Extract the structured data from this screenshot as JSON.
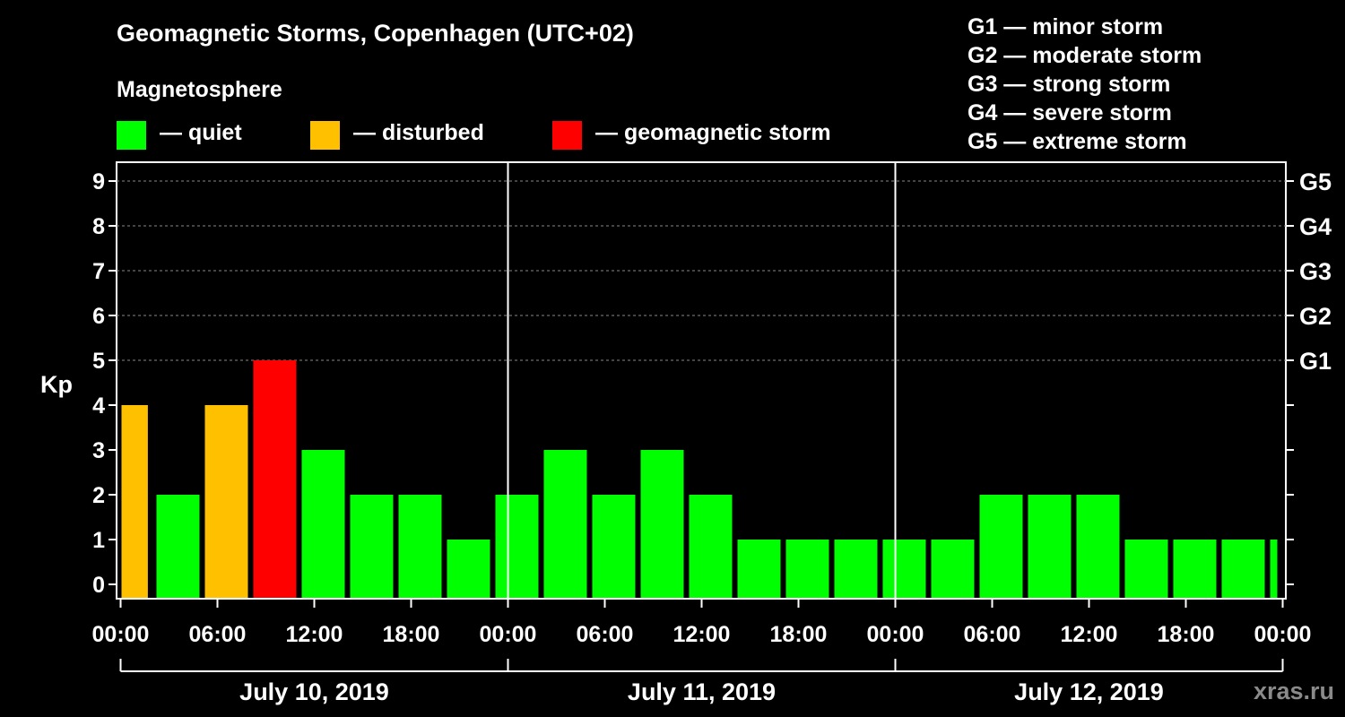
{
  "header": {
    "title": "Geomagnetic Storms, Copenhagen (UTC+02)",
    "magnetosphere_label": "Magnetosphere"
  },
  "legend": {
    "items": [
      {
        "label": "— quiet",
        "color": "#00ff00"
      },
      {
        "label": "— disturbed",
        "color": "#ffc000"
      },
      {
        "label": "— geomagnetic storm",
        "color": "#ff0000"
      }
    ]
  },
  "storm_scale": [
    "G1 — minor storm",
    "G2 — moderate storm",
    "G3 — strong storm",
    "G4 — severe storm",
    "G5 — extreme storm"
  ],
  "watermark": "xras.ru",
  "colors": {
    "quiet": "#00ff00",
    "disturbed": "#ffc000",
    "storm": "#ff0000"
  },
  "chart_data": {
    "type": "bar",
    "title": "Geomagnetic Storms, Copenhagen (UTC+02)",
    "ylabel": "Kp",
    "ylim": [
      0,
      9
    ],
    "yticks": [
      "0",
      "1",
      "2",
      "3",
      "4",
      "5",
      "6",
      "7",
      "8",
      "9"
    ],
    "right_ticks": [
      {
        "kp": 5,
        "label": "G1"
      },
      {
        "kp": 6,
        "label": "G2"
      },
      {
        "kp": 7,
        "label": "G3"
      },
      {
        "kp": 8,
        "label": "G4"
      },
      {
        "kp": 9,
        "label": "G5"
      }
    ],
    "xlim_hours": [
      0,
      72
    ],
    "xticks": [
      {
        "hour": 0,
        "label": "00:00"
      },
      {
        "hour": 6,
        "label": "06:00"
      },
      {
        "hour": 12,
        "label": "12:00"
      },
      {
        "hour": 18,
        "label": "18:00"
      },
      {
        "hour": 24,
        "label": "00:00"
      },
      {
        "hour": 30,
        "label": "06:00"
      },
      {
        "hour": 36,
        "label": "12:00"
      },
      {
        "hour": 42,
        "label": "18:00"
      },
      {
        "hour": 48,
        "label": "00:00"
      },
      {
        "hour": 54,
        "label": "06:00"
      },
      {
        "hour": 60,
        "label": "12:00"
      },
      {
        "hour": 66,
        "label": "18:00"
      },
      {
        "hour": 72,
        "label": "00:00"
      }
    ],
    "days": [
      {
        "label": "July 10, 2019",
        "start_hour": 0
      },
      {
        "label": "July 11, 2019",
        "start_hour": 24
      },
      {
        "label": "July 12, 2019",
        "start_hour": 48
      }
    ],
    "bars": [
      {
        "start_hour": 0,
        "end_hour": 1.8,
        "kp": 4,
        "status": "disturbed"
      },
      {
        "start_hour": 2,
        "end_hour": 5,
        "kp": 2,
        "status": "quiet"
      },
      {
        "start_hour": 5,
        "end_hour": 8,
        "kp": 4,
        "status": "disturbed"
      },
      {
        "start_hour": 8,
        "end_hour": 11,
        "kp": 5,
        "status": "storm"
      },
      {
        "start_hour": 11,
        "end_hour": 14,
        "kp": 3,
        "status": "quiet"
      },
      {
        "start_hour": 14,
        "end_hour": 17,
        "kp": 2,
        "status": "quiet"
      },
      {
        "start_hour": 17,
        "end_hour": 20,
        "kp": 2,
        "status": "quiet"
      },
      {
        "start_hour": 20,
        "end_hour": 23,
        "kp": 1,
        "status": "quiet"
      },
      {
        "start_hour": 23,
        "end_hour": 26,
        "kp": 2,
        "status": "quiet"
      },
      {
        "start_hour": 26,
        "end_hour": 29,
        "kp": 3,
        "status": "quiet"
      },
      {
        "start_hour": 29,
        "end_hour": 32,
        "kp": 2,
        "status": "quiet"
      },
      {
        "start_hour": 32,
        "end_hour": 35,
        "kp": 3,
        "status": "quiet"
      },
      {
        "start_hour": 35,
        "end_hour": 38,
        "kp": 2,
        "status": "quiet"
      },
      {
        "start_hour": 38,
        "end_hour": 41,
        "kp": 1,
        "status": "quiet"
      },
      {
        "start_hour": 41,
        "end_hour": 44,
        "kp": 1,
        "status": "quiet"
      },
      {
        "start_hour": 44,
        "end_hour": 47,
        "kp": 1,
        "status": "quiet"
      },
      {
        "start_hour": 47,
        "end_hour": 50,
        "kp": 1,
        "status": "quiet"
      },
      {
        "start_hour": 50,
        "end_hour": 53,
        "kp": 1,
        "status": "quiet"
      },
      {
        "start_hour": 53,
        "end_hour": 56,
        "kp": 2,
        "status": "quiet"
      },
      {
        "start_hour": 56,
        "end_hour": 59,
        "kp": 2,
        "status": "quiet"
      },
      {
        "start_hour": 59,
        "end_hour": 62,
        "kp": 2,
        "status": "quiet"
      },
      {
        "start_hour": 62,
        "end_hour": 65,
        "kp": 1,
        "status": "quiet"
      },
      {
        "start_hour": 65,
        "end_hour": 68,
        "kp": 1,
        "status": "quiet"
      },
      {
        "start_hour": 68,
        "end_hour": 71,
        "kp": 1,
        "status": "quiet"
      },
      {
        "start_hour": 71,
        "end_hour": 72,
        "kp": 1,
        "status": "quiet"
      }
    ]
  }
}
